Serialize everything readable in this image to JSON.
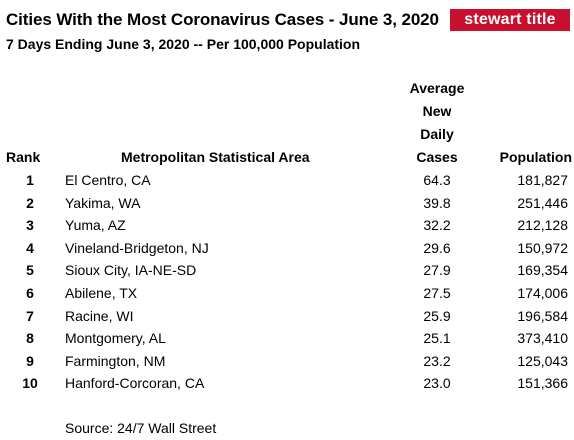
{
  "title": "Cities With the Most Coronavirus Cases - June 3, 2020",
  "logo_text": "stewart title",
  "subtitle": "7 Days Ending June 3, 2020 -- Per 100,000 Population",
  "headers": {
    "rank": "Rank",
    "msa": "Metropolitan Statistical Area",
    "cases_lines": [
      "Average",
      "New",
      "Daily",
      "Cases"
    ],
    "population": "Population"
  },
  "rows": [
    {
      "rank": "1",
      "msa": "El Centro, CA",
      "cases": "64.3",
      "population": "181,827"
    },
    {
      "rank": "2",
      "msa": "Yakima, WA",
      "cases": "39.8",
      "population": "251,446"
    },
    {
      "rank": "3",
      "msa": "Yuma, AZ",
      "cases": "32.2",
      "population": "212,128"
    },
    {
      "rank": "4",
      "msa": "Vineland-Bridgeton, NJ",
      "cases": "29.6",
      "population": "150,972"
    },
    {
      "rank": "5",
      "msa": "Sioux City, IA-NE-SD",
      "cases": "27.9",
      "population": "169,354"
    },
    {
      "rank": "6",
      "msa": "Abilene, TX",
      "cases": "27.5",
      "population": "174,006"
    },
    {
      "rank": "7",
      "msa": "Racine, WI",
      "cases": "25.9",
      "population": "196,584"
    },
    {
      "rank": "8",
      "msa": "Montgomery, AL",
      "cases": "25.1",
      "population": "373,410"
    },
    {
      "rank": "9",
      "msa": "Farmington, NM",
      "cases": "23.2",
      "population": "125,043"
    },
    {
      "rank": "10",
      "msa": "Hanford-Corcoran, CA",
      "cases": "23.0",
      "population": "151,366"
    }
  ],
  "source": "Source: 24/7 Wall Street",
  "colors": {
    "logo_bg": "#c8102e",
    "text": "#000000"
  }
}
